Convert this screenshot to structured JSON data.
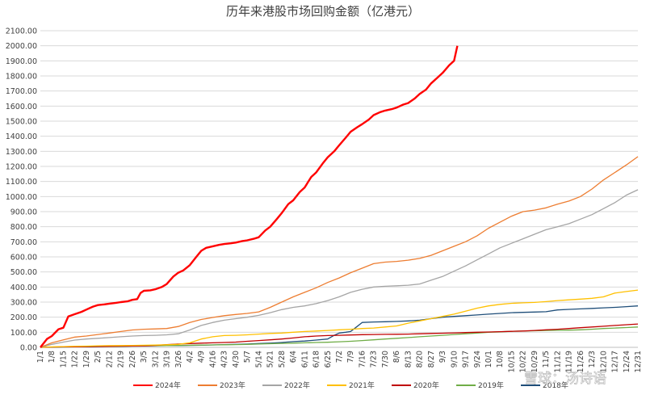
{
  "chart_data": {
    "type": "line",
    "title": "历年来港股市场回购金额（亿港元）",
    "xlabel": "",
    "ylabel": "",
    "ylim": [
      0,
      2100
    ],
    "yticks": [
      "0.00",
      "100.00",
      "200.00",
      "300.00",
      "400.00",
      "500.00",
      "600.00",
      "700.00",
      "800.00",
      "900.00",
      "1000.00",
      "1100.00",
      "1200.00",
      "1300.00",
      "1400.00",
      "1500.00",
      "1600.00",
      "1700.00",
      "1800.00",
      "1900.00",
      "2000.00",
      "2100.00"
    ],
    "x_axis_type": "day-of-year",
    "xlim": [
      1,
      365
    ],
    "xticks": [
      {
        "label": "1/1",
        "day": 1
      },
      {
        "label": "1/8",
        "day": 8
      },
      {
        "label": "1/15",
        "day": 15
      },
      {
        "label": "1/22",
        "day": 22
      },
      {
        "label": "1/29",
        "day": 29
      },
      {
        "label": "2/5",
        "day": 36
      },
      {
        "label": "2/12",
        "day": 43
      },
      {
        "label": "2/19",
        "day": 50
      },
      {
        "label": "2/26",
        "day": 57
      },
      {
        "label": "3/5",
        "day": 64
      },
      {
        "label": "3/12",
        "day": 71
      },
      {
        "label": "3/19",
        "day": 78
      },
      {
        "label": "3/26",
        "day": 85
      },
      {
        "label": "4/2",
        "day": 92
      },
      {
        "label": "4/9",
        "day": 99
      },
      {
        "label": "4/16",
        "day": 106
      },
      {
        "label": "4/23",
        "day": 113
      },
      {
        "label": "4/30",
        "day": 120
      },
      {
        "label": "5/7",
        "day": 127
      },
      {
        "label": "5/14",
        "day": 134
      },
      {
        "label": "5/21",
        "day": 141
      },
      {
        "label": "5/28",
        "day": 148
      },
      {
        "label": "6/4",
        "day": 155
      },
      {
        "label": "6/11",
        "day": 162
      },
      {
        "label": "6/18",
        "day": 169
      },
      {
        "label": "6/25",
        "day": 176
      },
      {
        "label": "7/2",
        "day": 183
      },
      {
        "label": "7/9",
        "day": 190
      },
      {
        "label": "7/16",
        "day": 197
      },
      {
        "label": "7/23",
        "day": 204
      },
      {
        "label": "7/30",
        "day": 211
      },
      {
        "label": "8/6",
        "day": 218
      },
      {
        "label": "8/13",
        "day": 225
      },
      {
        "label": "8/20",
        "day": 232
      },
      {
        "label": "8/27",
        "day": 239
      },
      {
        "label": "9/3",
        "day": 246
      },
      {
        "label": "9/10",
        "day": 253
      },
      {
        "label": "9/17",
        "day": 260
      },
      {
        "label": "9/24",
        "day": 267
      },
      {
        "label": "10/1",
        "day": 274
      },
      {
        "label": "10/8",
        "day": 281
      },
      {
        "label": "10/15",
        "day": 288
      },
      {
        "label": "10/22",
        "day": 295
      },
      {
        "label": "10/29",
        "day": 302
      },
      {
        "label": "11/5",
        "day": 309
      },
      {
        "label": "11/12",
        "day": 316
      },
      {
        "label": "11/19",
        "day": 323
      },
      {
        "label": "11/26",
        "day": 330
      },
      {
        "label": "12/3",
        "day": 337
      },
      {
        "label": "12/10",
        "day": 344
      },
      {
        "label": "12/17",
        "day": 351
      },
      {
        "label": "12/24",
        "day": 358
      },
      {
        "label": "12/31",
        "day": 365
      }
    ],
    "series": [
      {
        "name": "2024年",
        "color": "#ff0000",
        "x": [
          1,
          5,
          8,
          12,
          15,
          18,
          22,
          26,
          29,
          33,
          36,
          40,
          43,
          47,
          50,
          54,
          57,
          60,
          62,
          64,
          68,
          71,
          75,
          78,
          82,
          85,
          88,
          92,
          96,
          99,
          102,
          106,
          110,
          113,
          117,
          120,
          124,
          127,
          131,
          134,
          138,
          141,
          145,
          148,
          152,
          155,
          159,
          162,
          166,
          169,
          173,
          176,
          180,
          183,
          187,
          190,
          194,
          197,
          201,
          204,
          208,
          211,
          215,
          218,
          222,
          225,
          229,
          232,
          236,
          239,
          243,
          246,
          250,
          253,
          255
        ],
        "y": [
          0,
          55,
          75,
          120,
          130,
          205,
          220,
          235,
          250,
          270,
          280,
          285,
          290,
          295,
          300,
          305,
          315,
          320,
          360,
          375,
          378,
          385,
          400,
          420,
          470,
          495,
          510,
          545,
          600,
          640,
          660,
          670,
          680,
          685,
          690,
          695,
          705,
          710,
          720,
          730,
          775,
          800,
          850,
          890,
          950,
          975,
          1030,
          1060,
          1130,
          1160,
          1220,
          1260,
          1300,
          1340,
          1390,
          1430,
          1460,
          1480,
          1510,
          1540,
          1560,
          1570,
          1580,
          1590,
          1610,
          1620,
          1650,
          1680,
          1710,
          1750,
          1790,
          1820,
          1870,
          1900,
          2000
        ]
      },
      {
        "name": "2023年",
        "color": "#ed7d31",
        "x": [
          1,
          8,
          15,
          22,
          29,
          36,
          43,
          50,
          57,
          64,
          71,
          78,
          85,
          92,
          99,
          106,
          113,
          120,
          127,
          134,
          141,
          148,
          155,
          162,
          169,
          176,
          183,
          190,
          197,
          204,
          211,
          218,
          225,
          232,
          239,
          246,
          253,
          260,
          267,
          274,
          281,
          288,
          295,
          302,
          309,
          316,
          323,
          330,
          337,
          344,
          351,
          358,
          365
        ],
        "y": [
          0,
          30,
          50,
          68,
          75,
          85,
          95,
          105,
          115,
          120,
          122,
          125,
          138,
          165,
          185,
          198,
          210,
          218,
          225,
          235,
          265,
          300,
          335,
          365,
          395,
          430,
          460,
          495,
          525,
          555,
          565,
          570,
          578,
          590,
          610,
          640,
          670,
          700,
          740,
          790,
          830,
          870,
          900,
          910,
          925,
          950,
          970,
          1000,
          1050,
          1110,
          1160,
          1210,
          1265
        ]
      },
      {
        "name": "2022年",
        "color": "#a5a5a5",
        "x": [
          1,
          8,
          15,
          22,
          29,
          36,
          43,
          50,
          57,
          64,
          71,
          78,
          85,
          92,
          99,
          106,
          113,
          120,
          127,
          134,
          141,
          148,
          155,
          162,
          169,
          176,
          183,
          190,
          197,
          204,
          211,
          218,
          225,
          232,
          239,
          246,
          253,
          260,
          267,
          274,
          281,
          288,
          295,
          302,
          309,
          316,
          323,
          330,
          337,
          344,
          351,
          358,
          365
        ],
        "y": [
          0,
          20,
          35,
          48,
          55,
          60,
          65,
          70,
          75,
          78,
          80,
          83,
          90,
          115,
          145,
          165,
          180,
          190,
          200,
          212,
          230,
          250,
          265,
          275,
          290,
          310,
          335,
          365,
          385,
          400,
          405,
          408,
          412,
          420,
          445,
          470,
          505,
          540,
          580,
          620,
          660,
          690,
          720,
          750,
          780,
          800,
          820,
          850,
          880,
          920,
          960,
          1010,
          1045
        ]
      },
      {
        "name": "2021年",
        "color": "#ffc000",
        "x": [
          1,
          8,
          15,
          22,
          29,
          36,
          43,
          50,
          57,
          64,
          71,
          78,
          85,
          92,
          99,
          106,
          113,
          120,
          127,
          134,
          141,
          148,
          155,
          162,
          169,
          176,
          183,
          190,
          197,
          204,
          211,
          218,
          225,
          232,
          239,
          246,
          253,
          260,
          267,
          274,
          281,
          288,
          295,
          302,
          309,
          316,
          323,
          330,
          337,
          344,
          351,
          358,
          365
        ],
        "y": [
          0,
          3,
          5,
          7,
          8,
          10,
          11,
          12,
          13,
          14,
          15,
          17,
          20,
          30,
          55,
          70,
          78,
          80,
          83,
          88,
          92,
          95,
          100,
          105,
          108,
          112,
          116,
          120,
          125,
          128,
          135,
          142,
          160,
          175,
          190,
          205,
          220,
          240,
          260,
          275,
          285,
          292,
          295,
          298,
          303,
          310,
          315,
          320,
          325,
          335,
          360,
          370,
          380
        ]
      },
      {
        "name": "2020年",
        "color": "#c00000",
        "x": [
          1,
          8,
          15,
          22,
          29,
          36,
          43,
          50,
          57,
          64,
          71,
          78,
          85,
          92,
          99,
          106,
          113,
          120,
          127,
          134,
          141,
          148,
          155,
          162,
          169,
          176,
          183,
          190,
          197,
          204,
          211,
          218,
          225,
          232,
          239,
          246,
          253,
          260,
          267,
          274,
          281,
          288,
          295,
          302,
          309,
          316,
          323,
          330,
          337,
          344,
          351,
          358,
          365
        ],
        "y": [
          0,
          2,
          3,
          4,
          5,
          6,
          7,
          8,
          9,
          10,
          13,
          18,
          22,
          25,
          28,
          30,
          32,
          35,
          40,
          45,
          50,
          55,
          62,
          70,
          75,
          78,
          80,
          82,
          84,
          85,
          86,
          87,
          88,
          90,
          92,
          94,
          96,
          98,
          100,
          102,
          104,
          106,
          108,
          112,
          116,
          120,
          125,
          130,
          135,
          140,
          145,
          150,
          155
        ]
      },
      {
        "name": "2019年",
        "color": "#70ad47",
        "x": [
          1,
          8,
          15,
          22,
          29,
          36,
          43,
          50,
          57,
          64,
          71,
          78,
          85,
          92,
          99,
          106,
          113,
          120,
          127,
          134,
          141,
          148,
          155,
          162,
          169,
          176,
          183,
          190,
          197,
          204,
          211,
          218,
          225,
          232,
          239,
          246,
          253,
          260,
          267,
          274,
          281,
          288,
          295,
          302,
          309,
          316,
          323,
          330,
          337,
          344,
          351,
          358,
          365
        ],
        "y": [
          0,
          2,
          3,
          4,
          5,
          6,
          7,
          8,
          9,
          10,
          11,
          12,
          13,
          14,
          15,
          16,
          17,
          18,
          20,
          22,
          24,
          26,
          28,
          30,
          32,
          34,
          37,
          40,
          45,
          50,
          55,
          60,
          65,
          70,
          75,
          80,
          85,
          90,
          95,
          100,
          103,
          106,
          108,
          110,
          112,
          113,
          114,
          116,
          120,
          125,
          128,
          131,
          135
        ]
      },
      {
        "name": "2018年",
        "color": "#1f4e79",
        "x": [
          1,
          8,
          15,
          22,
          29,
          36,
          43,
          50,
          57,
          64,
          71,
          78,
          85,
          92,
          99,
          106,
          113,
          120,
          127,
          134,
          141,
          148,
          155,
          162,
          169,
          176,
          180,
          183,
          187,
          190,
          193,
          197,
          204,
          211,
          218,
          225,
          232,
          239,
          246,
          253,
          260,
          267,
          274,
          281,
          288,
          295,
          302,
          309,
          316,
          323,
          330,
          337,
          344,
          351,
          358,
          365
        ],
        "y": [
          0,
          1,
          2,
          3,
          4,
          5,
          6,
          7,
          8,
          9,
          10,
          11,
          12,
          13,
          14,
          16,
          18,
          20,
          22,
          25,
          28,
          32,
          38,
          42,
          48,
          55,
          80,
          95,
          100,
          105,
          130,
          165,
          168,
          170,
          172,
          175,
          180,
          190,
          200,
          205,
          210,
          215,
          220,
          225,
          230,
          232,
          234,
          236,
          248,
          252,
          255,
          258,
          262,
          265,
          270,
          275
        ]
      }
    ],
    "legend_position": "bottom",
    "grid": true
  },
  "watermark": {
    "text": "雪球：汤诗语"
  }
}
